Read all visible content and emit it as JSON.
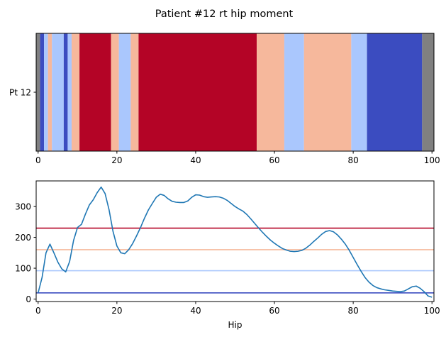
{
  "figure": {
    "title": "Patient #12 rt hip moment"
  },
  "chart_data": [
    {
      "type": "heatmap",
      "title": "",
      "row_label": "Pt 12",
      "xlabel": "",
      "ylabel": "",
      "xlim": [
        -0.5,
        100.5
      ],
      "xticks": [
        0,
        20,
        40,
        60,
        80,
        100
      ],
      "grid": false,
      "colors": {
        "gray": "#808080",
        "dark_blue": "#3b4cc0",
        "light_blue": "#aac7fd",
        "salmon": "#f6b89c",
        "dark_red": "#b40426"
      },
      "segments": [
        {
          "start": -0.5,
          "end": 0.5,
          "color": "gray"
        },
        {
          "start": 0.5,
          "end": 1.5,
          "color": "dark_blue"
        },
        {
          "start": 1.5,
          "end": 2.5,
          "color": "light_blue"
        },
        {
          "start": 2.5,
          "end": 3.5,
          "color": "salmon"
        },
        {
          "start": 3.5,
          "end": 6.5,
          "color": "light_blue"
        },
        {
          "start": 6.5,
          "end": 7.5,
          "color": "dark_blue"
        },
        {
          "start": 7.5,
          "end": 8.5,
          "color": "light_blue"
        },
        {
          "start": 8.5,
          "end": 10.5,
          "color": "salmon"
        },
        {
          "start": 10.5,
          "end": 18.5,
          "color": "dark_red"
        },
        {
          "start": 18.5,
          "end": 20.5,
          "color": "salmon"
        },
        {
          "start": 20.5,
          "end": 23.5,
          "color": "light_blue"
        },
        {
          "start": 23.5,
          "end": 25.5,
          "color": "salmon"
        },
        {
          "start": 25.5,
          "end": 55.5,
          "color": "dark_red"
        },
        {
          "start": 55.5,
          "end": 62.5,
          "color": "salmon"
        },
        {
          "start": 62.5,
          "end": 67.5,
          "color": "light_blue"
        },
        {
          "start": 67.5,
          "end": 79.5,
          "color": "salmon"
        },
        {
          "start": 79.5,
          "end": 83.5,
          "color": "light_blue"
        },
        {
          "start": 83.5,
          "end": 97.5,
          "color": "dark_blue"
        },
        {
          "start": 97.5,
          "end": 100.5,
          "color": "gray"
        }
      ]
    },
    {
      "type": "line",
      "title": "",
      "xlabel": "Hip",
      "ylabel": "",
      "xlim": [
        -0.5,
        100.5
      ],
      "ylim": [
        -8,
        383
      ],
      "xticks": [
        0,
        20,
        40,
        60,
        80,
        100
      ],
      "yticks": [
        0,
        100,
        200,
        300
      ],
      "grid": false,
      "series": [
        {
          "color": "#1f77b4",
          "x": [
            0,
            1,
            2,
            3,
            4,
            5,
            6,
            7,
            8,
            9,
            10,
            11,
            12,
            13,
            14,
            15,
            16,
            17,
            18,
            19,
            20,
            21,
            22,
            23,
            24,
            25,
            26,
            27,
            28,
            29,
            30,
            31,
            32,
            33,
            34,
            35,
            36,
            37,
            38,
            39,
            40,
            41,
            42,
            43,
            44,
            45,
            46,
            47,
            48,
            49,
            50,
            51,
            52,
            53,
            54,
            55,
            56,
            57,
            58,
            59,
            60,
            61,
            62,
            63,
            64,
            65,
            66,
            67,
            68,
            69,
            70,
            71,
            72,
            73,
            74,
            75,
            76,
            77,
            78,
            79,
            80,
            81,
            82,
            83,
            84,
            85,
            86,
            87,
            88,
            89,
            90,
            91,
            92,
            93,
            94,
            95,
            96,
            97,
            98,
            99,
            100
          ],
          "y": [
            20,
            70,
            150,
            178,
            150,
            120,
            98,
            88,
            122,
            190,
            232,
            242,
            275,
            305,
            322,
            345,
            363,
            342,
            290,
            220,
            172,
            150,
            147,
            160,
            180,
            205,
            232,
            262,
            289,
            310,
            330,
            340,
            336,
            325,
            317,
            314,
            313,
            313,
            318,
            330,
            338,
            337,
            332,
            330,
            331,
            332,
            331,
            327,
            320,
            310,
            300,
            292,
            285,
            274,
            260,
            245,
            230,
            216,
            203,
            191,
            181,
            172,
            164,
            159,
            155,
            154,
            155,
            158,
            165,
            175,
            187,
            198,
            210,
            219,
            222,
            218,
            208,
            194,
            178,
            158,
            135,
            112,
            90,
            70,
            55,
            44,
            37,
            33,
            30,
            28,
            26,
            25,
            24,
            26,
            33,
            40,
            42,
            35,
            24,
            10,
            6
          ]
        }
      ],
      "thresholds": [
        {
          "y": 230,
          "color": "#b40426"
        },
        {
          "y": 160,
          "color": "#f6b89c"
        },
        {
          "y": 92,
          "color": "#aac7fd"
        },
        {
          "y": 20,
          "color": "#3b4cc0"
        }
      ]
    }
  ]
}
